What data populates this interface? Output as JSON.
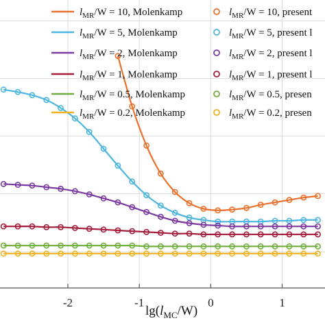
{
  "chart_data": {
    "type": "line",
    "title": "",
    "xlabel_main": "lg(",
    "xlabel_italic": "l",
    "xlabel_sub": "MC",
    "xlabel_rest": "/W)",
    "ylabel": "",
    "xlim": [
      -2.95,
      1.6
    ],
    "ylim": [
      0.0,
      3.6
    ],
    "grid": true,
    "legend_position": "top",
    "x_ticks": [
      -2,
      -1,
      0,
      1
    ],
    "x_tick_labels": [
      "-2",
      "-1",
      "0",
      "1"
    ],
    "y_grid_values": [
      0.45,
      1.18,
      1.9,
      2.62,
      3.34
    ],
    "series": [
      {
        "name": "l_MR/W = 10",
        "line_label": "Molenkamp",
        "marker_label": "present",
        "line_legend": [
          "l",
          "MR",
          "/W = 10, Molenkamp"
        ],
        "marker_legend": [
          "l",
          "MR",
          "/W = 10, present"
        ],
        "color": "#e8702a",
        "x": [
          -1.3,
          -1.1,
          -0.9,
          -0.7,
          -0.5,
          -0.3,
          -0.1,
          0.1,
          0.3,
          0.5,
          0.7,
          0.9,
          1.1,
          1.3,
          1.5
        ],
        "y": [
          2.9,
          2.27,
          1.78,
          1.43,
          1.2,
          1.06,
          0.99,
          0.97,
          0.98,
          1.0,
          1.04,
          1.07,
          1.1,
          1.13,
          1.15
        ]
      },
      {
        "name": "l_MR/W = 5",
        "line_label": "Molenkamp",
        "marker_label": "present l",
        "line_legend": [
          "l",
          "MR",
          "/W = 5, Molenkamp"
        ],
        "marker_legend": [
          "l",
          "MR",
          "/W = 5, present l"
        ],
        "color": "#4cb5e0",
        "x": [
          -2.9,
          -2.7,
          -2.5,
          -2.3,
          -2.1,
          -1.9,
          -1.7,
          -1.5,
          -1.3,
          -1.1,
          -0.9,
          -0.7,
          -0.5,
          -0.3,
          -0.1,
          0.1,
          0.3,
          0.5,
          0.7,
          0.9,
          1.1,
          1.3,
          1.5
        ],
        "y": [
          2.48,
          2.45,
          2.41,
          2.35,
          2.25,
          2.12,
          1.95,
          1.74,
          1.53,
          1.33,
          1.16,
          1.03,
          0.94,
          0.88,
          0.85,
          0.83,
          0.83,
          0.83,
          0.83,
          0.84,
          0.84,
          0.85,
          0.85
        ]
      },
      {
        "name": "l_MR/W = 2",
        "line_label": "Molenkamp",
        "marker_label": "present l",
        "line_legend": [
          "l",
          "MR",
          "/W = 2, Molenkamp"
        ],
        "marker_legend": [
          "l",
          "MR",
          "/W = 2, present l"
        ],
        "color": "#7a3aa0",
        "x": [
          -2.9,
          -2.7,
          -2.5,
          -2.3,
          -2.1,
          -1.9,
          -1.7,
          -1.5,
          -1.3,
          -1.1,
          -0.9,
          -0.7,
          -0.5,
          -0.3,
          -0.1,
          0.1,
          0.3,
          0.5,
          0.7,
          0.9,
          1.1,
          1.3,
          1.5
        ],
        "y": [
          1.3,
          1.29,
          1.28,
          1.26,
          1.24,
          1.21,
          1.17,
          1.12,
          1.07,
          1.01,
          0.95,
          0.89,
          0.84,
          0.81,
          0.79,
          0.78,
          0.77,
          0.77,
          0.77,
          0.77,
          0.77,
          0.77,
          0.77
        ]
      },
      {
        "name": "l_MR/W = 1",
        "line_label": "Molenkamp",
        "marker_label": "present l",
        "line_legend": [
          "l",
          "MR",
          "/W = 1, Molenkamp"
        ],
        "marker_legend": [
          "l",
          "MR",
          "/W = 1, present l"
        ],
        "color": "#a41c3a",
        "x": [
          -2.9,
          -2.7,
          -2.5,
          -2.3,
          -2.1,
          -1.9,
          -1.7,
          -1.5,
          -1.3,
          -1.1,
          -0.9,
          -0.7,
          -0.5,
          -0.3,
          -0.1,
          0.1,
          0.3,
          0.5,
          0.7,
          0.9,
          1.1,
          1.3,
          1.5
        ],
        "y": [
          0.77,
          0.77,
          0.77,
          0.76,
          0.76,
          0.75,
          0.74,
          0.73,
          0.72,
          0.71,
          0.7,
          0.69,
          0.68,
          0.68,
          0.67,
          0.67,
          0.67,
          0.67,
          0.67,
          0.67,
          0.67,
          0.67,
          0.67
        ]
      },
      {
        "name": "l_MR/W = 0.5",
        "line_label": "Molenkamp",
        "marker_label": "present",
        "line_legend": [
          "l",
          "MR",
          "/W = 0.5, Molenkamp"
        ],
        "marker_legend": [
          "l",
          "MR",
          "/W = 0.5, presen"
        ],
        "color": "#6fae3c",
        "x": [
          -2.9,
          -2.7,
          -2.5,
          -2.3,
          -2.1,
          -1.9,
          -1.7,
          -1.5,
          -1.3,
          -1.1,
          -0.9,
          -0.7,
          -0.5,
          -0.3,
          -0.1,
          0.1,
          0.3,
          0.5,
          0.7,
          0.9,
          1.1,
          1.3,
          1.5
        ],
        "y": [
          0.53,
          0.53,
          0.53,
          0.53,
          0.53,
          0.53,
          0.53,
          0.53,
          0.53,
          0.53,
          0.52,
          0.52,
          0.52,
          0.52,
          0.52,
          0.52,
          0.52,
          0.52,
          0.52,
          0.52,
          0.52,
          0.52,
          0.52
        ]
      },
      {
        "name": "l_MR/W = 0.2",
        "line_label": "Molenkamp",
        "marker_label": "presen",
        "line_legend": [
          "l",
          "MR",
          "/W = 0.2, Molenkamp"
        ],
        "marker_legend": [
          "l",
          "MR",
          "/W = 0.2, presen"
        ],
        "color": "#f0b21d",
        "x": [
          -2.9,
          -2.7,
          -2.5,
          -2.3,
          -2.1,
          -1.9,
          -1.7,
          -1.5,
          -1.3,
          -1.1,
          -0.9,
          -0.7,
          -0.5,
          -0.3,
          -0.1,
          0.1,
          0.3,
          0.5,
          0.7,
          0.9,
          1.1,
          1.3,
          1.5
        ],
        "y": [
          0.43,
          0.43,
          0.43,
          0.43,
          0.43,
          0.43,
          0.43,
          0.43,
          0.43,
          0.43,
          0.43,
          0.43,
          0.43,
          0.43,
          0.43,
          0.43,
          0.43,
          0.43,
          0.43,
          0.43,
          0.43,
          0.43,
          0.43
        ]
      }
    ]
  }
}
